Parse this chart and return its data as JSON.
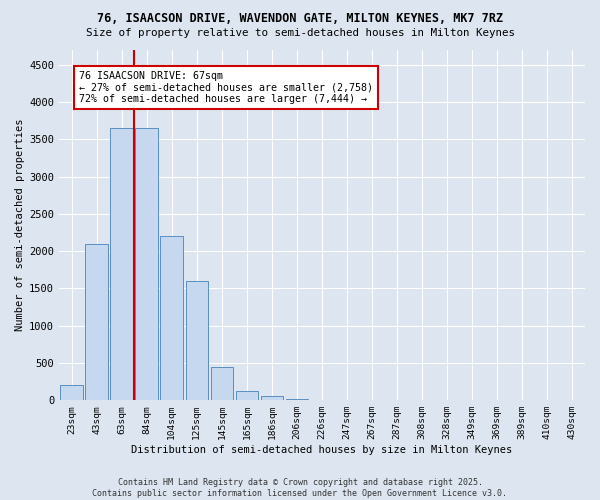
{
  "title1": "76, ISAACSON DRIVE, WAVENDON GATE, MILTON KEYNES, MK7 7RZ",
  "title2": "Size of property relative to semi-detached houses in Milton Keynes",
  "xlabel": "Distribution of semi-detached houses by size in Milton Keynes",
  "ylabel": "Number of semi-detached properties",
  "property_label": "76 ISAACSON DRIVE: 67sqm",
  "pct_smaller": 27,
  "count_smaller": 2758,
  "pct_larger": 72,
  "count_larger": 7444,
  "categories": [
    "23sqm",
    "43sqm",
    "63sqm",
    "84sqm",
    "104sqm",
    "125sqm",
    "145sqm",
    "165sqm",
    "186sqm",
    "206sqm",
    "226sqm",
    "247sqm",
    "267sqm",
    "287sqm",
    "308sqm",
    "328sqm",
    "349sqm",
    "369sqm",
    "389sqm",
    "410sqm",
    "430sqm"
  ],
  "values": [
    200,
    2100,
    3650,
    3650,
    2200,
    1600,
    450,
    120,
    60,
    10,
    5,
    2,
    1,
    0,
    0,
    0,
    0,
    0,
    0,
    0,
    0
  ],
  "bar_color": "#c5d8f0",
  "bar_edge_color": "#5a8fc3",
  "vline_color": "#cc0000",
  "box_color": "#cc0000",
  "background_color": "#dde6f0",
  "grid_color": "#ffffff",
  "footer": "Contains HM Land Registry data © Crown copyright and database right 2025.\nContains public sector information licensed under the Open Government Licence v3.0.",
  "ylim": [
    0,
    4700
  ],
  "yticks": [
    0,
    500,
    1000,
    1500,
    2000,
    2500,
    3000,
    3500,
    4000,
    4500
  ]
}
